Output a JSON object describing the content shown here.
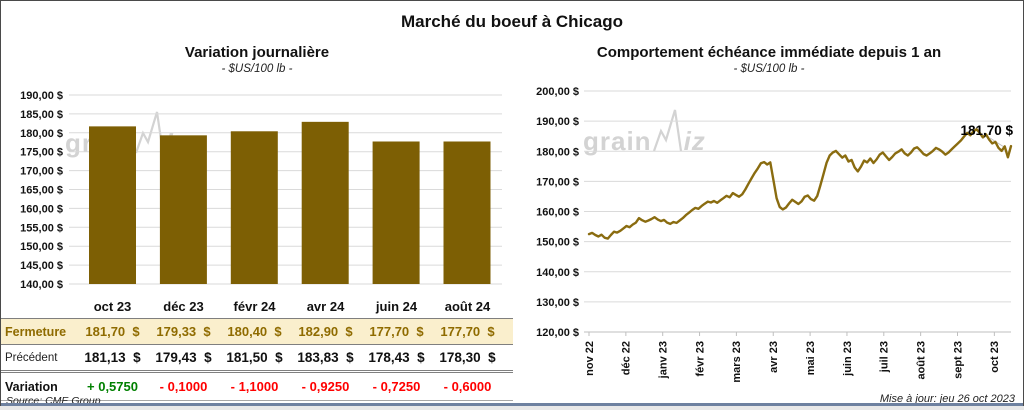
{
  "page": {
    "title": "Marché du boeuf à Chicago",
    "source": "Source: CME Group",
    "updated": "Mise à jour: jeu 26 oct 2023",
    "watermark": {
      "full": "grainwiz",
      "parts": [
        "grain",
        "iz"
      ]
    }
  },
  "colors": {
    "bar": "#7D5F04",
    "line": "#8A6C10",
    "grid": "#DADADA",
    "axis": "#BFBFBF",
    "fermeture_bg": "#FAEFCD",
    "gold_text": "#8F6B00",
    "positive": "#008000",
    "negative": "#FF0000",
    "leader": "#BFBFBF",
    "watermark": "#D3D3D3",
    "text": "#111111"
  },
  "chart_data": [
    {
      "type": "bar",
      "title": "Variation journalière",
      "subtitle": "- $US/100 lb -",
      "categories": [
        "oct 23",
        "déc 23",
        "févr 24",
        "avr 24",
        "juin 24",
        "août 24"
      ],
      "values": [
        181.7,
        179.33,
        180.4,
        182.9,
        177.7,
        177.7
      ],
      "ylim": [
        140,
        190
      ],
      "ytick_step": 5,
      "ytick_labels": [
        "190,00 $",
        "185,00 $",
        "180,00 $",
        "175,00 $",
        "170,00 $",
        "165,00 $",
        "160,00 $",
        "155,00 $",
        "150,00 $",
        "145,00 $",
        "140,00 $"
      ],
      "grid": true,
      "legend": "none"
    },
    {
      "type": "line",
      "title": "Comportement échéance immédiate depuis 1 an",
      "subtitle": "- $US/100 lb -",
      "x_labels": [
        "nov 22",
        "déc 22",
        "janv 23",
        "févr 23",
        "mars 23",
        "avr 23",
        "mai 23",
        "juin 23",
        "juil 23",
        "août 23",
        "sept 23",
        "oct 23"
      ],
      "ylim": [
        120,
        200
      ],
      "ytick_step": 10,
      "ytick_labels": [
        "200,00 $",
        "190,00 $",
        "180,00 $",
        "170,00 $",
        "160,00 $",
        "150,00 $",
        "140,00 $",
        "130,00 $",
        "120,00 $"
      ],
      "end_label": "181,70 $",
      "last_value": 181.7,
      "grid": true,
      "legend": "none",
      "values": [
        152.5,
        152.9,
        152.2,
        151.7,
        152.3,
        151.3,
        151.0,
        152.2,
        153.3,
        153.0,
        153.6,
        154.4,
        155.2,
        154.8,
        155.7,
        156.3,
        157.8,
        157.1,
        156.6,
        157.0,
        157.5,
        158.1,
        157.3,
        156.8,
        157.2,
        156.3,
        155.9,
        156.5,
        156.2,
        157.0,
        157.8,
        158.8,
        159.6,
        160.5,
        161.2,
        160.9,
        161.8,
        162.6,
        163.3,
        163.0,
        163.5,
        162.9,
        163.7,
        164.4,
        165.2,
        164.7,
        166.1,
        165.5,
        164.9,
        165.7,
        167.3,
        169.2,
        171.0,
        172.8,
        174.3,
        176.0,
        176.4,
        175.6,
        176.3,
        170.5,
        164.4,
        161.5,
        160.7,
        161.3,
        162.7,
        163.9,
        163.2,
        162.5,
        163.4,
        164.9,
        165.3,
        164.1,
        163.6,
        165.1,
        168.6,
        172.3,
        176.2,
        178.6,
        179.6,
        180.1,
        179.0,
        177.9,
        178.6,
        176.6,
        177.1,
        174.6,
        173.3,
        174.9,
        176.9,
        176.3,
        177.6,
        176.1,
        177.3,
        178.9,
        179.6,
        178.3,
        177.1,
        178.1,
        179.3,
        179.9,
        180.6,
        179.3,
        178.6,
        179.6,
        180.9,
        181.3,
        180.3,
        179.1,
        178.6,
        179.3,
        180.1,
        181.1,
        180.6,
        179.9,
        178.9,
        179.6,
        180.6,
        181.6,
        182.6,
        183.6,
        184.9,
        186.1,
        185.3,
        186.6,
        187.3,
        186.1,
        184.6,
        185.6,
        183.9,
        182.6,
        183.1,
        181.1,
        180.1,
        181.6,
        178.0,
        181.7
      ]
    }
  ],
  "table": {
    "col_headers": [
      "oct 23",
      "déc 23",
      "févr 24",
      "avr 24",
      "juin 24",
      "août 24"
    ],
    "rows": [
      {
        "label": "Fermeture",
        "style": "fermeture",
        "values": [
          "181,70  $",
          "179,33  $",
          "180,40  $",
          "182,90  $",
          "177,70  $",
          "177,70  $"
        ]
      },
      {
        "label": "Précédent",
        "style": "precedent",
        "values": [
          "181,13  $",
          "179,43  $",
          "181,50  $",
          "183,83  $",
          "178,43  $",
          "178,30  $"
        ]
      },
      {
        "label": "Variation",
        "style": "variation",
        "values": [
          "+ 0,5750",
          "- 0,1000",
          "- 1,1000",
          "- 0,9250",
          "- 0,7250",
          "- 0,6000"
        ],
        "value_signs": [
          "positive",
          "negative",
          "negative",
          "negative",
          "negative",
          "negative"
        ]
      }
    ]
  }
}
